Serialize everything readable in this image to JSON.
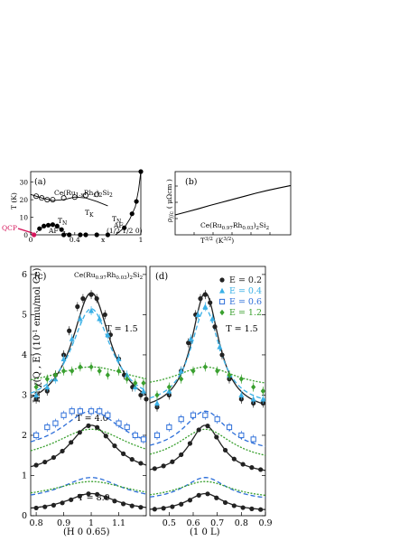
{
  "chart_data": [
    {
      "panel": "(a)",
      "type": "line",
      "title": "Ce(Ru1-xRhx)2Si2",
      "xlabel": "x",
      "ylabel": "T (K)",
      "xlim": [
        0,
        1
      ],
      "ylim": [
        0,
        36
      ],
      "xticks": [
        0,
        0.4,
        1
      ],
      "yticks": [
        0,
        10,
        20,
        30
      ],
      "annotations": [
        "TK",
        "TN",
        "TN",
        "AF",
        "AF",
        "(1/2 1/2 0)",
        "QCP"
      ],
      "series": [
        {
          "role": "TK curve",
          "style": "solid",
          "x": [
            0.0,
            0.1,
            0.2,
            0.3,
            0.4,
            0.5,
            0.6,
            0.7
          ],
          "y": [
            23,
            21,
            19.5,
            20,
            21.5,
            21,
            19,
            16.5
          ]
        },
        {
          "role": "TK points",
          "style": "open-circle",
          "x": [
            0.05,
            0.1,
            0.15,
            0.2,
            0.3,
            0.4,
            0.5,
            0.6
          ],
          "y": [
            22,
            21,
            20,
            20,
            21,
            21.5,
            22.5,
            23
          ]
        },
        {
          "role": "TN AF1 dome",
          "style": "dashed",
          "x": [
            0.03,
            0.07,
            0.1,
            0.15,
            0.2,
            0.25,
            0.3,
            0.34
          ],
          "y": [
            0,
            2.5,
            4,
            5.5,
            5.5,
            4.5,
            2,
            0
          ]
        },
        {
          "role": "TN AF1 points",
          "style": "filled-circle",
          "x": [
            0.08,
            0.12,
            0.16,
            0.2,
            0.24,
            0.28
          ],
          "y": [
            3.5,
            5,
            5.5,
            5.8,
            5,
            3
          ]
        },
        {
          "role": "TN AF high-x",
          "style": "solid",
          "x": [
            0.77,
            0.85,
            0.9,
            0.95,
            0.98,
            1.0
          ],
          "y": [
            0,
            4,
            9,
            16,
            26,
            36
          ]
        },
        {
          "role": "TN AF high-x points",
          "style": "filled-circle",
          "x": [
            0.85,
            0.92,
            0.96,
            1.0
          ],
          "y": [
            4,
            12,
            19,
            36
          ]
        },
        {
          "role": "x=0 points",
          "style": "filled-circle",
          "x": [
            0.3,
            0.35,
            0.45,
            0.5,
            0.6,
            0.7
          ],
          "y": [
            0,
            0,
            0,
            0,
            0,
            0
          ]
        }
      ]
    },
    {
      "panel": "(b)",
      "type": "line",
      "xlabel": "T3/2 (K3/2)",
      "ylabel": "ρ//c ( μΩcm )",
      "annotation": "Ce(Ru0.97Rh0.03)2Si2",
      "series": [
        {
          "x": [
            0,
            0.1,
            0.2,
            0.3,
            0.4,
            0.5,
            0.6,
            0.7,
            0.8,
            0.9,
            1.0
          ],
          "y": [
            0.0,
            0.1,
            0.2,
            0.31,
            0.41,
            0.51,
            0.61,
            0.71,
            0.8,
            0.88,
            0.96
          ]
        }
      ]
    },
    {
      "panel": "(c)",
      "type": "scatter",
      "annotation": "Ce(Ru0.97Rh0.03)2Si2",
      "xlabel": "(H 0 0.65)",
      "ylabel": "Im χ(Q , E)  (10-1 emu/mol Ce)",
      "xlim": [
        0.78,
        1.2
      ],
      "ylim": [
        0,
        6.2
      ],
      "xticks": [
        "0.8",
        "0.9",
        "1",
        "1.1"
      ],
      "yticks": [
        "0",
        "1",
        "2",
        "3",
        "4",
        "5",
        "6"
      ],
      "temperature_labels": [
        "T = 1.5",
        "T = 4.0",
        "T = 8.0"
      ],
      "series": [
        {
          "name": "E = 0.2",
          "color": "#222222",
          "marker": "filled-circle",
          "x": [
            0.8,
            0.84,
            0.87,
            0.9,
            0.92,
            0.95,
            0.97,
            1.0,
            1.02,
            1.05,
            1.07,
            1.1,
            1.12,
            1.15,
            1.18,
            1.2
          ],
          "y": [
            2.9,
            3.1,
            3.5,
            4.0,
            4.6,
            5.2,
            5.4,
            5.5,
            5.4,
            5.0,
            4.5,
            3.9,
            3.5,
            3.2,
            3.0,
            2.9
          ]
        },
        {
          "name": "E = 0.4",
          "color": "#3ab0e6",
          "marker": "filled-triangle",
          "x": [
            0.8,
            0.84,
            0.87,
            0.9,
            0.93,
            0.96,
            1.0,
            1.03,
            1.06,
            1.1,
            1.13,
            1.16,
            1.19
          ],
          "y": [
            3.0,
            3.2,
            3.4,
            3.9,
            4.4,
            4.9,
            5.1,
            4.9,
            4.5,
            3.9,
            3.5,
            3.2,
            3.1
          ]
        },
        {
          "name": "E = 0.6",
          "color": "#2e6fd9",
          "marker": "open-square",
          "x": [
            0.8,
            0.84,
            0.87,
            0.9,
            0.93,
            0.96,
            1.0,
            1.03,
            1.06,
            1.1,
            1.13,
            1.16,
            1.19
          ],
          "y": [
            2.0,
            2.2,
            2.3,
            2.5,
            2.6,
            2.6,
            2.6,
            2.6,
            2.5,
            2.3,
            2.2,
            2.0,
            1.9
          ]
        },
        {
          "name": "E = 1.2",
          "color": "#3aa02f",
          "marker": "filled-diamond",
          "x": [
            0.8,
            0.84,
            0.87,
            0.9,
            0.93,
            0.96,
            1.0,
            1.03,
            1.06,
            1.1,
            1.13,
            1.16,
            1.19
          ],
          "y": [
            3.2,
            3.4,
            3.5,
            3.6,
            3.6,
            3.7,
            3.7,
            3.6,
            3.5,
            3.6,
            3.4,
            3.3,
            3.3
          ]
        }
      ]
    },
    {
      "panel": "(d)",
      "type": "scatter",
      "xlabel": "(1 0 L)",
      "xlim": [
        0.42,
        0.9
      ],
      "ylim": [
        0,
        6.2
      ],
      "xticks": [
        "0.5",
        "0.6",
        "0.7",
        "0.8",
        "0.9"
      ],
      "temperature_labels": [
        "T = 1.5"
      ],
      "legend_position": "top-right",
      "series": [
        {
          "name": "E = 0.2",
          "color": "#222222",
          "marker": "filled-circle",
          "x": [
            0.45,
            0.5,
            0.55,
            0.58,
            0.61,
            0.63,
            0.65,
            0.67,
            0.69,
            0.72,
            0.75,
            0.8,
            0.85,
            0.89
          ],
          "y": [
            2.7,
            3.0,
            3.6,
            4.3,
            5.0,
            5.4,
            5.5,
            5.3,
            4.7,
            4.0,
            3.4,
            2.9,
            2.8,
            2.8
          ]
        },
        {
          "name": "E = 0.4",
          "color": "#3ab0e6",
          "marker": "filled-triangle",
          "x": [
            0.45,
            0.5,
            0.55,
            0.59,
            0.62,
            0.65,
            0.68,
            0.71,
            0.75,
            0.8,
            0.85,
            0.89
          ],
          "y": [
            2.8,
            3.1,
            3.6,
            4.4,
            5.0,
            5.2,
            4.9,
            4.2,
            3.5,
            3.0,
            2.9,
            2.9
          ]
        },
        {
          "name": "E = 0.6",
          "color": "#2e6fd9",
          "marker": "open-square",
          "x": [
            0.45,
            0.5,
            0.55,
            0.6,
            0.65,
            0.7,
            0.75,
            0.8,
            0.85
          ],
          "y": [
            2.0,
            2.2,
            2.4,
            2.5,
            2.5,
            2.4,
            2.2,
            2.0,
            1.9
          ]
        },
        {
          "name": "E = 1.2",
          "color": "#3aa02f",
          "marker": "filled-diamond",
          "x": [
            0.45,
            0.5,
            0.55,
            0.6,
            0.65,
            0.7,
            0.75,
            0.8,
            0.85,
            0.89
          ],
          "y": [
            3.0,
            3.2,
            3.4,
            3.6,
            3.7,
            3.6,
            3.5,
            3.4,
            3.2,
            3.1
          ]
        }
      ]
    }
  ],
  "labels": {
    "a_panel": "(a)",
    "a_title": "Ce(Ru",
    "a_title_sub": "1-x",
    "a_title_mid": "Rh",
    "a_title_sub2": "x",
    "a_title_end": ")",
    "a_title_sub3": "2",
    "a_title_si": "Si",
    "a_title_sub4": "2",
    "a_ylabel": "T (K)",
    "a_xlabel": "x",
    "a_tk": "T",
    "a_tk_sub": "K",
    "a_tn": "T",
    "a_tn_sub": "N",
    "a_tn2": "T",
    "a_tn2_sub": "N",
    "a_af1": "AF",
    "a_af2": "AF",
    "a_af2_q": "(1/2 1/2 0)",
    "a_qcp": "QCP",
    "b_panel": "(b)",
    "b_ylabel_rho": "ρ",
    "b_ylabel_sub": "//c",
    "b_ylabel_unit": "( μΩcm )",
    "b_xlabel_t": "T",
    "b_xlabel_sup": "3/2",
    "b_xlabel_unit": "(K",
    "b_xlabel_unit_sup": "3/2",
    "b_xlabel_end": ")",
    "b_annot": "Ce(Ru",
    "b_annot_sub": "0.97",
    "b_annot_rh": "Rh",
    "b_annot_sub2": "0.03",
    "b_annot_end": ")",
    "b_annot_sub3": "2",
    "b_annot_si": "Si",
    "b_annot_sub4": "2",
    "c_panel": "(c)",
    "d_panel": "(d)",
    "y_main_label": "Im χ(Q , E)  (10",
    "y_main_sup": "-1",
    "y_main_end": " emu/mol Ce)"
  },
  "colors": {
    "e02": "#222222",
    "e04": "#3ab0e6",
    "e06": "#2e6fd9",
    "e12": "#3aa02f",
    "qcp": "#d4145a"
  }
}
